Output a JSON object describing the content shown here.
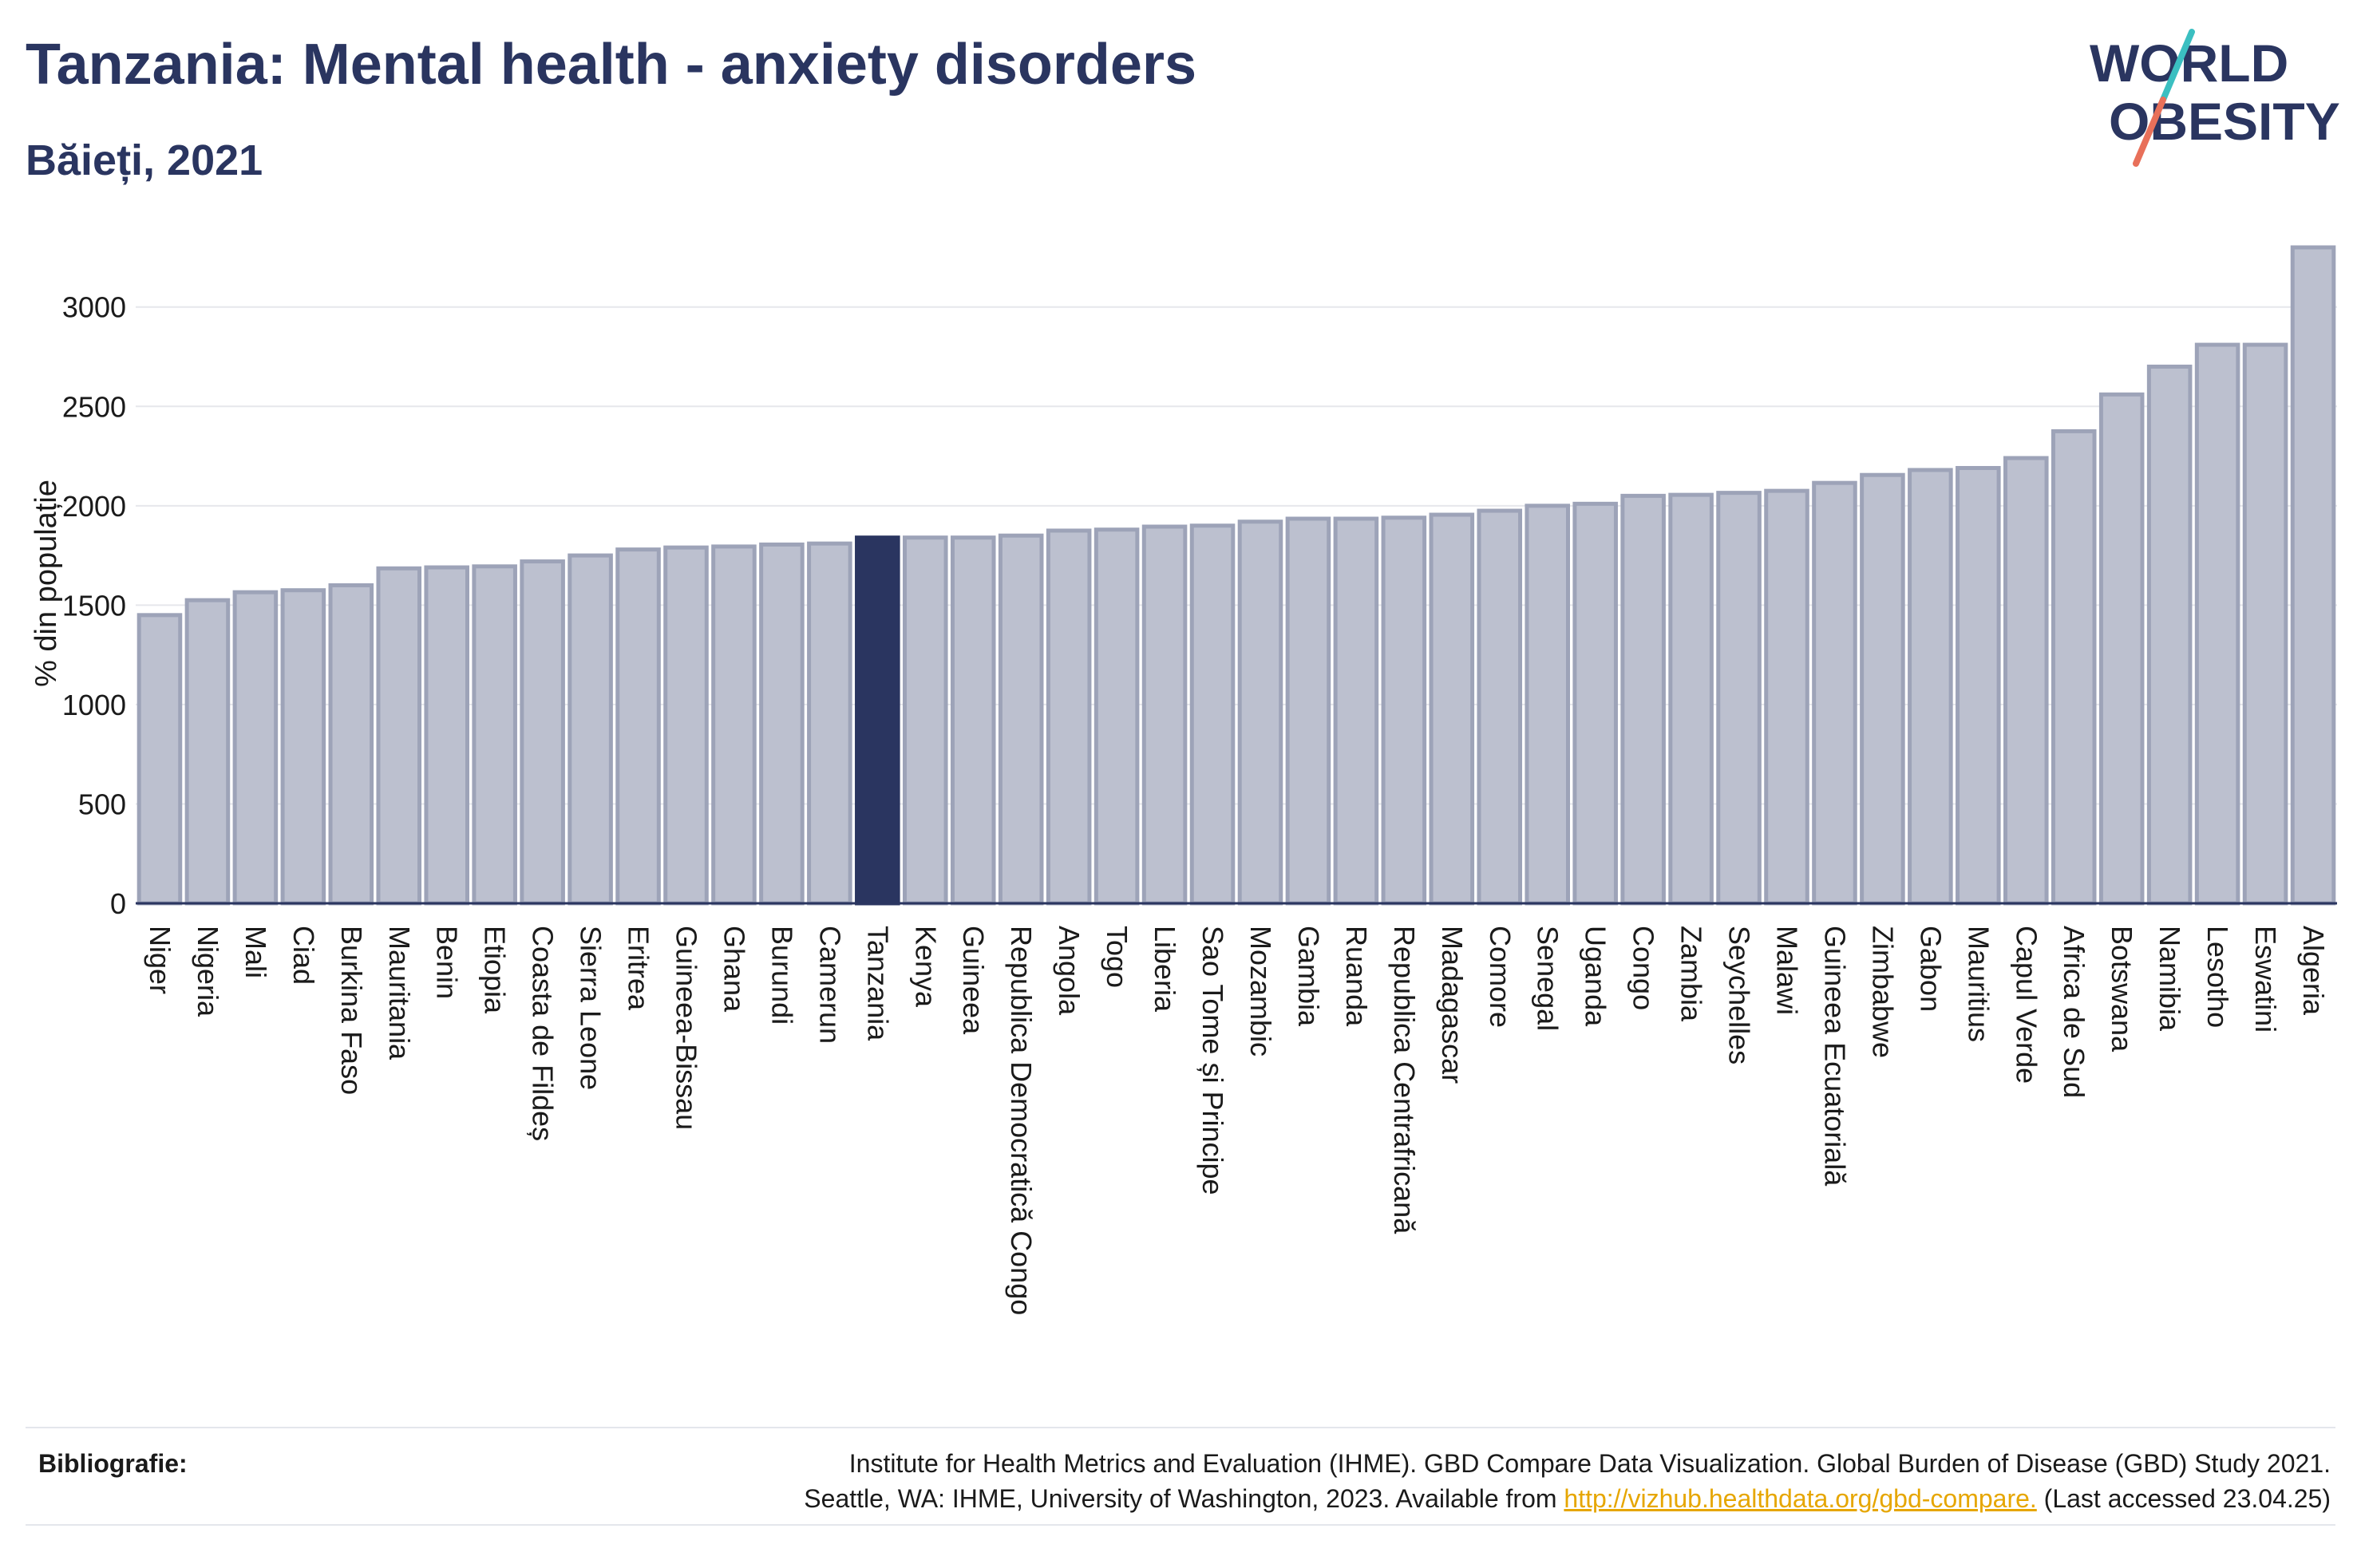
{
  "header": {
    "title": "Tanzania: Mental health - anxiety disorders",
    "subtitle": "Băieți, 2021"
  },
  "logo": {
    "line1": "WORLD",
    "line2": "OBESITY",
    "slash_colors": [
      "#3bbfc1",
      "#e8705a"
    ]
  },
  "footer": {
    "label": "Bibliografie:",
    "line1": "Institute for Health Metrics and Evaluation (IHME). GBD Compare Data Visualization. Global Burden of Disease (GBD) Study 2021.",
    "line2_prefix": "Seattle, WA: IHME, University of Washington, 2023. Available from ",
    "link": "http://vizhub.healthdata.org/gbd-compare.",
    "line2_suffix": " (Last accessed 23.04.25)"
  },
  "chart_data": {
    "type": "bar",
    "title": "Tanzania: Mental health - anxiety disorders",
    "subtitle": "Băieți, 2021",
    "xlabel": "",
    "ylabel": "% din populație",
    "ylim": [
      0,
      3300
    ],
    "yticks": [
      0,
      500,
      1000,
      1500,
      2000,
      2500,
      3000
    ],
    "grid": true,
    "highlight": "Tanzania",
    "colors": {
      "bar": "#bcc0cf",
      "bar_border": "#9da3b8",
      "highlight": "#2a3560",
      "axis": "#2a3560",
      "grid": "#e6e7ec"
    },
    "categories": [
      "Niger",
      "Nigeria",
      "Mali",
      "Ciad",
      "Burkina Faso",
      "Mauritania",
      "Benin",
      "Etiopia",
      "Coasta de Fildeș",
      "Sierra Leone",
      "Eritrea",
      "Guineea-Bissau",
      "Ghana",
      "Burundi",
      "Camerun",
      "Tanzania",
      "Kenya",
      "Guineea",
      "Republica Democratică Congo",
      "Angola",
      "Togo",
      "Liberia",
      "Sao Tome și Principe",
      "Mozambic",
      "Gambia",
      "Ruanda",
      "Republica Centrafricană",
      "Madagascar",
      "Comore",
      "Senegal",
      "Uganda",
      "Congo",
      "Zambia",
      "Seychelles",
      "Malawi",
      "Guineea Ecuatorială",
      "Zimbabwe",
      "Gabon",
      "Mauritius",
      "Capul Verde",
      "Africa de Sud",
      "Botswana",
      "Namibia",
      "Lesotho",
      "Eswatini",
      "Algeria"
    ],
    "values": [
      1450,
      1525,
      1565,
      1575,
      1600,
      1685,
      1690,
      1695,
      1720,
      1750,
      1780,
      1790,
      1795,
      1805,
      1810,
      1840,
      1840,
      1840,
      1850,
      1875,
      1880,
      1895,
      1900,
      1920,
      1935,
      1935,
      1940,
      1955,
      1975,
      2000,
      2010,
      2050,
      2055,
      2065,
      2075,
      2115,
      2155,
      2180,
      2190,
      2240,
      2375,
      2560,
      2700,
      2810,
      2810,
      3300
    ]
  }
}
